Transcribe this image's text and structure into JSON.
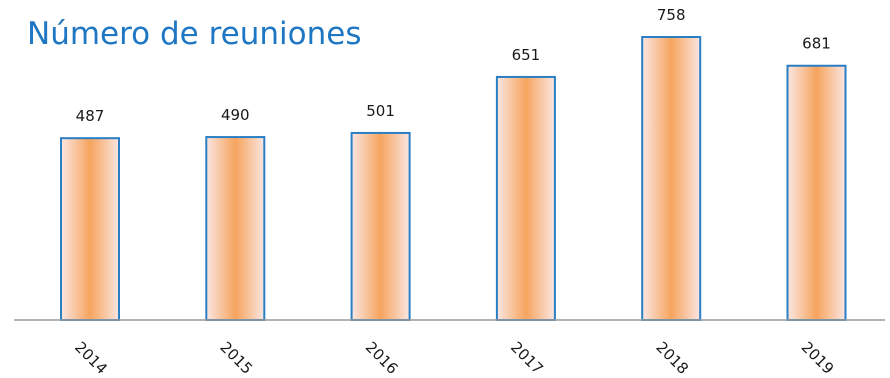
{
  "chart_data": {
    "type": "bar",
    "title": "Número de reuniones",
    "categories": [
      "2014",
      "2015",
      "2016",
      "2017",
      "2018",
      "2019"
    ],
    "values": [
      487,
      490,
      501,
      651,
      758,
      681
    ],
    "data_labels": [
      "487",
      "490",
      "501",
      "651",
      "758",
      "681"
    ],
    "xlabel": "",
    "ylabel": "",
    "ylim": [
      0,
      800
    ],
    "grid": false,
    "legend": "none",
    "tick_label_rotation": "diagonal",
    "colors": {
      "title": "#1f77c4",
      "bar_border": "#2a7fc4",
      "bar_fill_edge": "#fbe6e2",
      "bar_fill_center": "#f6a45e",
      "axis": "#9a9a9a",
      "label_text": "#1a1a1a"
    }
  }
}
